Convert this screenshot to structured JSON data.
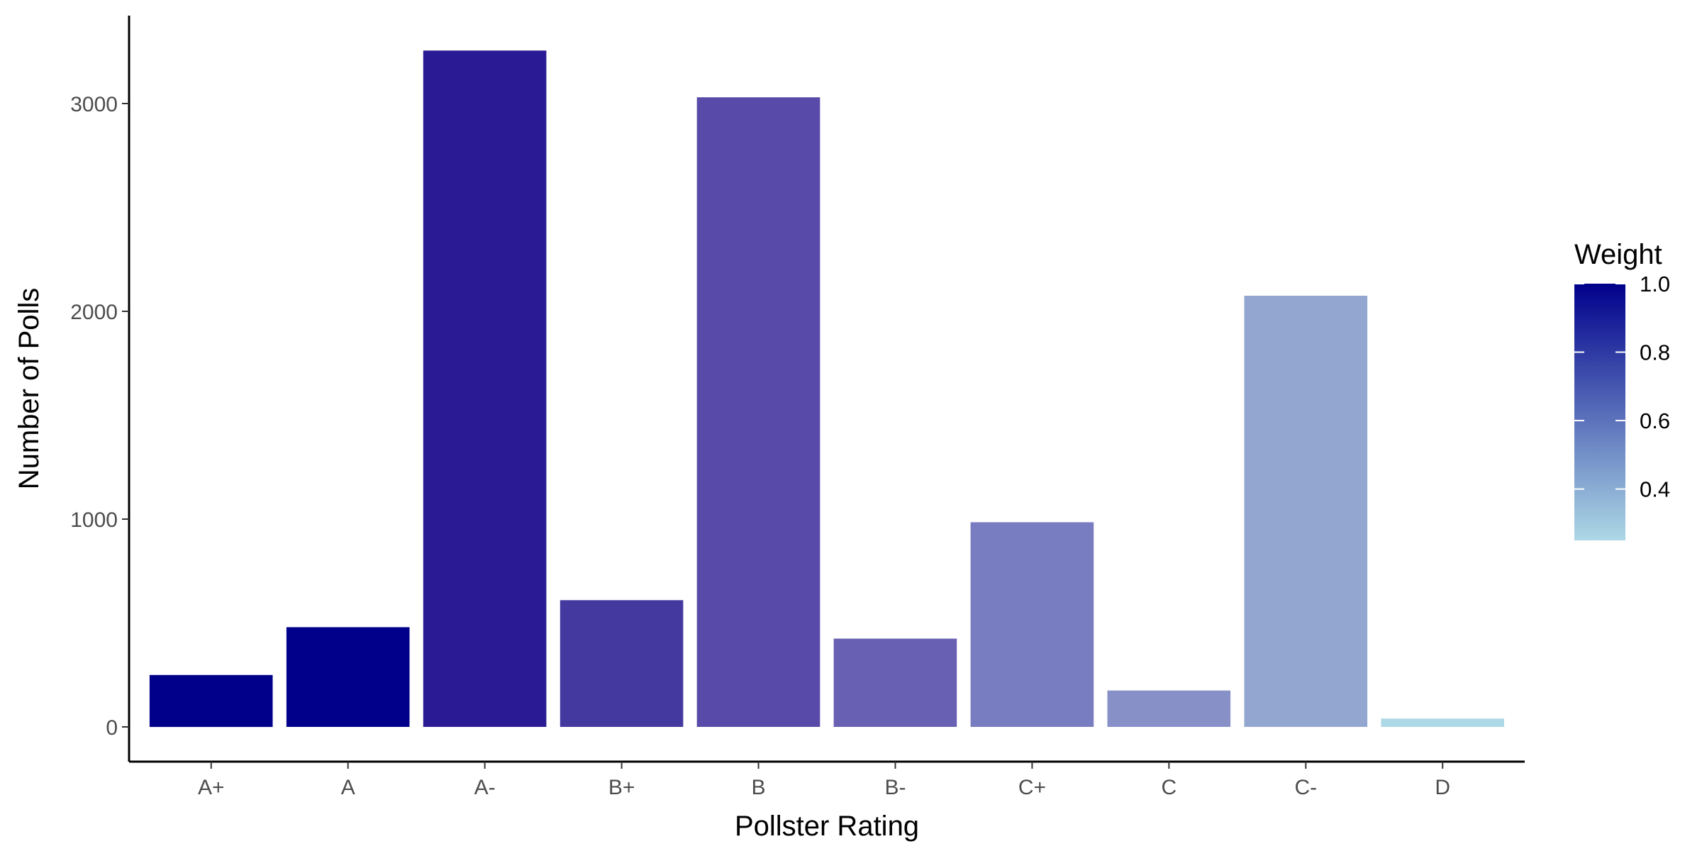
{
  "chart_data": {
    "type": "bar",
    "title": "",
    "xlabel": "Pollster Rating",
    "ylabel": "Number of Polls",
    "categories": [
      "A+",
      "A",
      "A-",
      "B+",
      "B",
      "B-",
      "C+",
      "C",
      "C-",
      "D"
    ],
    "values": [
      250,
      480,
      3255,
      610,
      3030,
      425,
      985,
      175,
      2075,
      40
    ],
    "weights": [
      1.0,
      1.0,
      0.9,
      0.8,
      0.7,
      0.62,
      0.52,
      0.44,
      0.38,
      0.25
    ],
    "colors": [
      "#00008b",
      "#00008b",
      "#2a1a93",
      "#44399f",
      "#584aa8",
      "#6860b3",
      "#787cc1",
      "#8890c8",
      "#93a6d0",
      "#add8e6"
    ],
    "ylim": [
      0,
      3420
    ],
    "yticks": [
      0,
      1000,
      2000,
      3000
    ],
    "grid": false,
    "legend": {
      "title": "Weight",
      "position": "right",
      "range": [
        0.25,
        1.0
      ],
      "ticks": [
        "0.4",
        "0.6",
        "0.8",
        "1.0"
      ],
      "low_color": "#add8e6",
      "high_color": "#00008b"
    }
  }
}
